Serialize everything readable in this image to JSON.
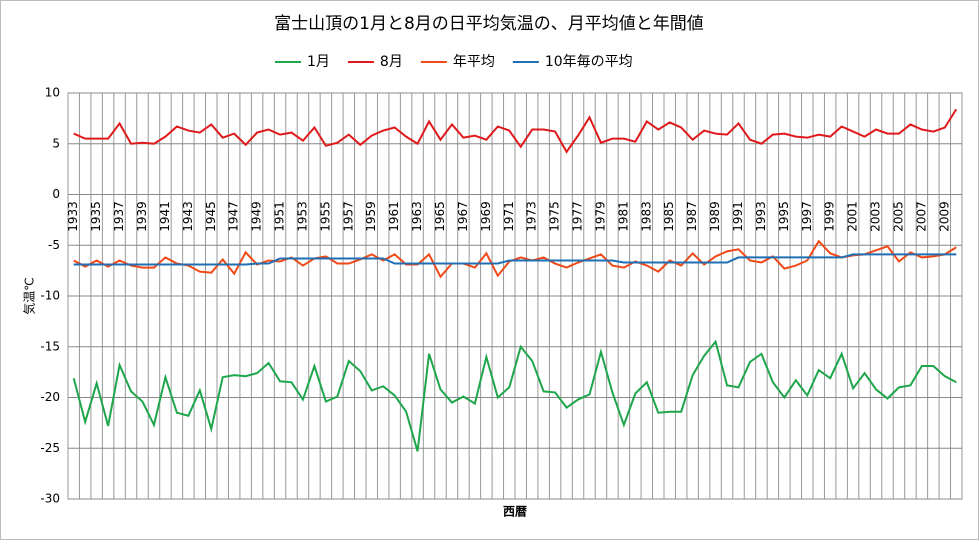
{
  "chart_data": {
    "type": "line",
    "title": "富士山頂の1月と8月の日平均気温の、月平均値と年間値",
    "x_label": "西暦",
    "y_label": "気温℃",
    "categories": [
      "1933",
      null,
      "1935",
      null,
      "1937",
      null,
      "1939",
      null,
      "1941",
      null,
      "1943",
      null,
      "1945",
      null,
      "1947",
      null,
      "1949",
      null,
      "1951",
      null,
      "1953",
      null,
      "1955",
      null,
      "1957",
      null,
      "1959",
      null,
      "1961",
      null,
      "1963",
      null,
      "1965",
      null,
      "1967",
      null,
      "1969",
      null,
      "1971",
      null,
      "1973",
      null,
      "1975",
      null,
      "1977",
      null,
      "1979",
      null,
      "1981",
      null,
      "1983",
      null,
      "1985",
      null,
      "1987",
      null,
      "1989",
      null,
      "1991",
      null,
      "1993",
      null,
      "1995",
      null,
      "1997",
      null,
      "1999",
      null,
      "2001",
      null,
      "2003",
      null,
      "2005",
      null,
      "2007",
      null,
      "2009",
      null
    ],
    "series": [
      {
        "name": "1月",
        "color": "#1ea64b",
        "values": [
          -18.1,
          -22.4,
          -18.6,
          -22.8,
          -16.8,
          -19.4,
          -20.4,
          -22.7,
          -18.0,
          -21.5,
          -21.8,
          -19.3,
          -23.1,
          -18.0,
          -17.8,
          -17.9,
          -17.6,
          -16.6,
          -18.4,
          -18.5,
          -20.2,
          -16.9,
          -20.4,
          -19.9,
          -16.4,
          -17.4,
          -19.3,
          -18.9,
          -19.8,
          -21.4,
          -25.3,
          -15.7,
          -19.2,
          -20.5,
          -19.9,
          -20.6,
          -16.0,
          -20.0,
          -19.0,
          -15.0,
          -16.4,
          -19.4,
          -19.5,
          -21.0,
          -20.2,
          -19.7,
          -15.5,
          -19.5,
          -22.7,
          -19.6,
          -18.5,
          -21.5,
          -21.4,
          -21.4,
          -17.8,
          -15.9,
          -14.5,
          -18.8,
          -19.0,
          -16.5,
          -15.7,
          -18.5,
          -20.0,
          -18.3,
          -19.8,
          -17.3,
          -18.1,
          -15.7,
          -19.1,
          -17.6,
          -19.2,
          -20.1,
          -19.0,
          -18.8,
          -16.9,
          -16.9,
          -17.9,
          -18.5
        ]
      },
      {
        "name": "8月",
        "color": "#e0191c",
        "values": [
          6.0,
          5.5,
          5.5,
          5.5,
          7.0,
          5.0,
          5.1,
          5.0,
          5.7,
          6.7,
          6.3,
          6.1,
          6.9,
          5.6,
          6.0,
          4.9,
          6.1,
          6.4,
          5.9,
          6.1,
          5.3,
          6.6,
          4.8,
          5.1,
          5.9,
          4.9,
          5.8,
          6.3,
          6.6,
          5.7,
          5.0,
          7.2,
          5.4,
          6.9,
          5.6,
          5.8,
          5.4,
          6.7,
          6.3,
          4.7,
          6.4,
          6.4,
          6.2,
          4.2,
          5.8,
          7.6,
          5.1,
          5.5,
          5.5,
          5.2,
          7.2,
          6.4,
          7.1,
          6.6,
          5.4,
          6.3,
          6.0,
          5.9,
          7.0,
          5.4,
          5.0,
          5.9,
          6.0,
          5.7,
          5.6,
          5.9,
          5.7,
          6.7,
          6.2,
          5.7,
          6.4,
          6.0,
          6.0,
          6.9,
          6.4,
          6.2,
          6.6,
          8.4
        ]
      },
      {
        "name": "年平均",
        "color": "#f04a18",
        "values": [
          -6.5,
          -7.1,
          -6.5,
          -7.1,
          -6.5,
          -7.0,
          -7.2,
          -7.2,
          -6.2,
          -6.8,
          -7.0,
          -7.6,
          -7.7,
          -6.4,
          -7.8,
          -5.7,
          -6.9,
          -6.5,
          -6.6,
          -6.2,
          -7.0,
          -6.3,
          -6.1,
          -6.8,
          -6.8,
          -6.4,
          -5.9,
          -6.5,
          -5.9,
          -6.9,
          -6.9,
          -5.9,
          -8.1,
          -6.8,
          -6.8,
          -7.2,
          -5.8,
          -8.0,
          -6.6,
          -6.2,
          -6.5,
          -6.2,
          -6.8,
          -7.2,
          -6.7,
          -6.3,
          -5.9,
          -7.0,
          -7.2,
          -6.6,
          -7.0,
          -7.6,
          -6.5,
          -7.0,
          -5.8,
          -6.9,
          -6.1,
          -5.6,
          -5.4,
          -6.5,
          -6.7,
          -6.1,
          -7.3,
          -7.0,
          -6.5,
          -4.6,
          -5.8,
          -6.2,
          -6.0,
          -5.9,
          -5.5,
          -5.1,
          -6.6,
          -5.7,
          -6.2,
          -6.1,
          -5.9,
          -5.2
        ]
      },
      {
        "name": "10年毎の平均",
        "color": "#1f6fb4",
        "values": [
          -6.9,
          -6.9,
          -6.9,
          -6.9,
          -6.9,
          -6.9,
          -6.9,
          -6.9,
          -6.9,
          -6.9,
          -6.9,
          -6.9,
          -6.9,
          -6.9,
          -6.9,
          -6.9,
          -6.8,
          -6.8,
          -6.3,
          -6.3,
          -6.3,
          -6.3,
          -6.3,
          -6.3,
          -6.3,
          -6.3,
          -6.3,
          -6.3,
          -6.8,
          -6.8,
          -6.8,
          -6.8,
          -6.8,
          -6.8,
          -6.8,
          -6.8,
          -6.8,
          -6.8,
          -6.5,
          -6.5,
          -6.5,
          -6.5,
          -6.5,
          -6.5,
          -6.5,
          -6.5,
          -6.5,
          -6.5,
          -6.7,
          -6.7,
          -6.7,
          -6.7,
          -6.7,
          -6.7,
          -6.7,
          -6.7,
          -6.7,
          -6.7,
          -6.2,
          -6.2,
          -6.2,
          -6.2,
          -6.2,
          -6.2,
          -6.2,
          -6.2,
          -6.2,
          -6.2,
          -5.9,
          -5.9,
          -5.9,
          -5.9,
          -5.9,
          -5.9,
          -5.9,
          -5.9,
          -5.9,
          -5.9
        ]
      }
    ],
    "ylim": [
      -30,
      10
    ],
    "yticks": [
      -30,
      -25,
      -20,
      -15,
      -10,
      -5,
      0,
      5,
      10
    ],
    "grid": true
  }
}
